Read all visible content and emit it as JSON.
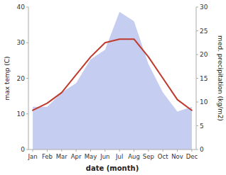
{
  "chart_data": {
    "type": "line",
    "xlabel": "date (month)",
    "ylabel": "max temp (C)",
    "y2label": "med. precipitation (kg/m2)",
    "categories": [
      "Jan",
      "Feb",
      "Mar",
      "Apr",
      "May",
      "Jun",
      "Jul",
      "Aug",
      "Sep",
      "Oct",
      "Nov",
      "Dec"
    ],
    "ylim": [
      0,
      40
    ],
    "yticks": [
      0,
      10,
      20,
      30,
      40
    ],
    "y2lim": [
      0,
      30
    ],
    "y2ticks": [
      0,
      5,
      10,
      15,
      20,
      25,
      30
    ],
    "grid": false,
    "series": [
      {
        "type": "area",
        "axis": "y2",
        "color": "#c5cef0",
        "values": [
          9,
          9,
          12,
          14,
          19,
          21,
          29,
          27,
          18,
          12,
          8,
          9
        ]
      },
      {
        "type": "line",
        "color": "#c0392b",
        "values": [
          11,
          13,
          16,
          21,
          26,
          30,
          31,
          31,
          26,
          20,
          14,
          11
        ]
      }
    ]
  }
}
